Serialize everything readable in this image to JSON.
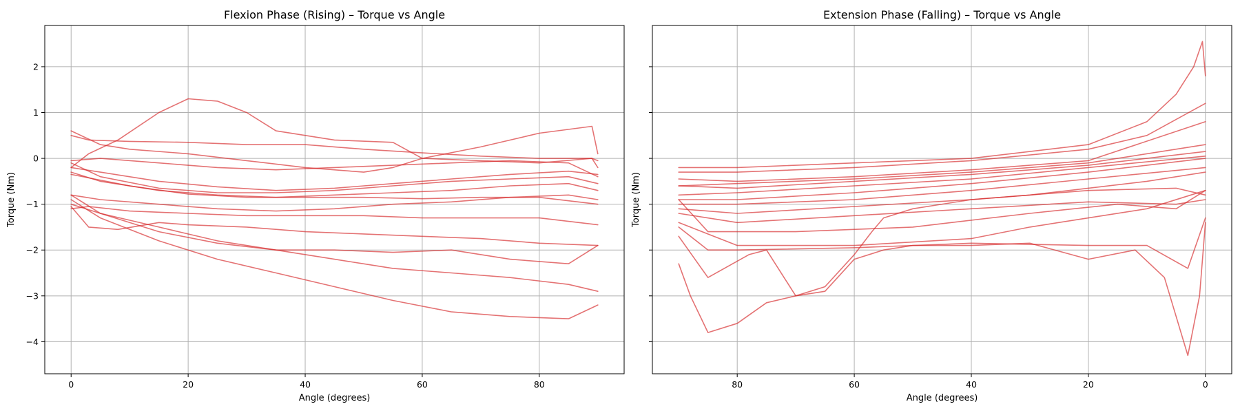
{
  "chart_data": [
    {
      "type": "line",
      "title": "Flexion Phase (Rising) – Torque vs Angle",
      "xlabel": "Angle (degrees)",
      "ylabel": "Torque (Nm)",
      "xlim": [
        -4.5,
        94.5
      ],
      "ylim": [
        -4.7,
        2.9
      ],
      "x_inverted": false,
      "xticks": [
        0,
        20,
        40,
        60,
        80
      ],
      "xtick_labels": [
        "0",
        "20",
        "40",
        "60",
        "80"
      ],
      "yticks": [
        -4,
        -3,
        -2,
        -1,
        0,
        1,
        2
      ],
      "ytick_labels": [
        "−4",
        "−3",
        "−2",
        "−1",
        "0",
        "1",
        "2"
      ],
      "grid": true,
      "line_color": "#d62728",
      "series": [
        {
          "x": [
            0,
            3,
            10,
            20,
            30,
            40,
            50,
            60,
            70,
            80,
            89,
            90
          ],
          "y": [
            0.5,
            0.4,
            0.37,
            0.35,
            0.3,
            0.3,
            0.2,
            0.12,
            0.05,
            0.0,
            0.0,
            -0.05
          ]
        },
        {
          "x": [
            0,
            3,
            8,
            15,
            20,
            25,
            30,
            35,
            45,
            55,
            60,
            70,
            80,
            89,
            90
          ],
          "y": [
            -0.2,
            0.1,
            0.4,
            1.0,
            1.3,
            1.25,
            1.0,
            0.6,
            0.4,
            0.35,
            0.0,
            -0.05,
            -0.1,
            0.0,
            -0.2
          ]
        },
        {
          "x": [
            0,
            5,
            10,
            20,
            30,
            40,
            50,
            55,
            60,
            70,
            80,
            89,
            90
          ],
          "y": [
            0.6,
            0.3,
            0.2,
            0.1,
            -0.05,
            -0.2,
            -0.3,
            -0.2,
            0.0,
            0.25,
            0.55,
            0.7,
            0.1
          ]
        },
        {
          "x": [
            0,
            5,
            15,
            25,
            35,
            45,
            55,
            65,
            75,
            85,
            90
          ],
          "y": [
            -0.05,
            0.0,
            -0.1,
            -0.2,
            -0.25,
            -0.2,
            -0.15,
            -0.1,
            -0.05,
            -0.1,
            -0.4
          ]
        },
        {
          "x": [
            0,
            5,
            15,
            25,
            35,
            45,
            55,
            65,
            75,
            85,
            90
          ],
          "y": [
            -0.2,
            -0.3,
            -0.5,
            -0.62,
            -0.7,
            -0.65,
            -0.55,
            -0.45,
            -0.35,
            -0.28,
            -0.35
          ]
        },
        {
          "x": [
            0,
            5,
            15,
            25,
            35,
            45,
            55,
            65,
            75,
            85,
            90
          ],
          "y": [
            -0.1,
            -0.4,
            -0.65,
            -0.75,
            -0.75,
            -0.7,
            -0.6,
            -0.5,
            -0.45,
            -0.4,
            -0.55
          ]
        },
        {
          "x": [
            0,
            5,
            15,
            25,
            35,
            45,
            55,
            65,
            75,
            85,
            90
          ],
          "y": [
            -0.3,
            -0.5,
            -0.7,
            -0.8,
            -0.85,
            -0.8,
            -0.75,
            -0.7,
            -0.6,
            -0.55,
            -0.7
          ]
        },
        {
          "x": [
            0,
            10,
            20,
            30,
            40,
            50,
            60,
            70,
            80,
            90
          ],
          "y": [
            -0.35,
            -0.6,
            -0.78,
            -0.85,
            -0.85,
            -0.85,
            -0.88,
            -0.85,
            -0.85,
            -1.0
          ]
        },
        {
          "x": [
            0,
            5,
            15,
            25,
            35,
            45,
            55,
            65,
            75,
            85,
            90
          ],
          "y": [
            -0.8,
            -0.9,
            -1.0,
            -1.1,
            -1.15,
            -1.1,
            -1.0,
            -0.95,
            -0.85,
            -0.8,
            -0.9
          ]
        },
        {
          "x": [
            0,
            3,
            10,
            20,
            30,
            40,
            50,
            60,
            70,
            80,
            90
          ],
          "y": [
            -1.1,
            -1.05,
            -1.15,
            -1.2,
            -1.25,
            -1.25,
            -1.25,
            -1.3,
            -1.3,
            -1.3,
            -1.45
          ]
        },
        {
          "x": [
            0,
            3,
            8,
            15,
            20,
            30,
            40,
            50,
            60,
            70,
            80,
            90
          ],
          "y": [
            -1.05,
            -1.5,
            -1.55,
            -1.4,
            -1.45,
            -1.5,
            -1.6,
            -1.65,
            -1.7,
            -1.75,
            -1.85,
            -1.9
          ]
        },
        {
          "x": [
            0,
            5,
            15,
            25,
            35,
            45,
            55,
            65,
            75,
            85,
            90
          ],
          "y": [
            -0.8,
            -1.2,
            -1.5,
            -1.8,
            -2.0,
            -2.0,
            -2.05,
            -2.0,
            -2.2,
            -2.3,
            -1.9
          ]
        },
        {
          "x": [
            0,
            5,
            15,
            25,
            35,
            45,
            55,
            65,
            75,
            85,
            90
          ],
          "y": [
            -1.0,
            -1.2,
            -1.6,
            -1.85,
            -2.0,
            -2.2,
            -2.4,
            -2.5,
            -2.6,
            -2.75,
            -2.9
          ]
        },
        {
          "x": [
            0,
            5,
            15,
            25,
            35,
            45,
            55,
            65,
            75,
            85,
            90
          ],
          "y": [
            -0.9,
            -1.3,
            -1.8,
            -2.2,
            -2.5,
            -2.8,
            -3.1,
            -3.35,
            -3.45,
            -3.5,
            -3.2
          ]
        }
      ]
    },
    {
      "type": "line",
      "title": "Extension Phase (Falling) – Torque vs Angle",
      "xlabel": "Angle (degrees)",
      "ylabel": "Torque (Nm)",
      "xlim": [
        94.5,
        -4.5
      ],
      "ylim": [
        -4.7,
        2.9
      ],
      "x_inverted": true,
      "xticks": [
        80,
        60,
        40,
        20,
        0
      ],
      "xtick_labels": [
        "80",
        "60",
        "40",
        "20",
        "0"
      ],
      "yticks": [
        -4,
        -3,
        -2,
        -1,
        0,
        1,
        2
      ],
      "ytick_labels": [
        "",
        "",
        "",
        "",
        "",
        "",
        ""
      ],
      "grid": true,
      "line_color": "#d62728",
      "series": [
        {
          "x": [
            90,
            80,
            60,
            40,
            20,
            10,
            5,
            2,
            0.5,
            0
          ],
          "y": [
            -0.2,
            -0.2,
            -0.1,
            0.0,
            0.3,
            0.8,
            1.4,
            2.0,
            2.55,
            1.8
          ]
        },
        {
          "x": [
            90,
            80,
            60,
            40,
            20,
            10,
            0
          ],
          "y": [
            -0.3,
            -0.3,
            -0.2,
            -0.05,
            0.2,
            0.5,
            1.2
          ]
        },
        {
          "x": [
            90,
            80,
            60,
            40,
            20,
            0
          ],
          "y": [
            -0.45,
            -0.5,
            -0.4,
            -0.25,
            -0.05,
            0.8
          ]
        },
        {
          "x": [
            90,
            80,
            60,
            40,
            20,
            0
          ],
          "y": [
            -0.6,
            -0.55,
            -0.45,
            -0.3,
            -0.1,
            0.3
          ]
        },
        {
          "x": [
            90,
            80,
            60,
            40,
            20,
            0
          ],
          "y": [
            -0.6,
            -0.65,
            -0.5,
            -0.35,
            -0.15,
            0.15
          ]
        },
        {
          "x": [
            90,
            80,
            60,
            40,
            20,
            0
          ],
          "y": [
            -0.8,
            -0.75,
            -0.6,
            -0.45,
            -0.2,
            0.05
          ]
        },
        {
          "x": [
            90,
            80,
            60,
            40,
            20,
            0
          ],
          "y": [
            -0.9,
            -0.9,
            -0.75,
            -0.55,
            -0.3,
            0.0
          ]
        },
        {
          "x": [
            90,
            80,
            60,
            40,
            20,
            0
          ],
          "y": [
            -1.0,
            -1.0,
            -0.9,
            -0.7,
            -0.45,
            -0.2
          ]
        },
        {
          "x": [
            90,
            80,
            60,
            40,
            20,
            5,
            0
          ],
          "y": [
            -1.1,
            -1.2,
            -1.05,
            -0.9,
            -0.7,
            -0.65,
            -0.8
          ]
        },
        {
          "x": [
            90,
            80,
            60,
            40,
            20,
            5,
            0
          ],
          "y": [
            -1.2,
            -1.4,
            -1.25,
            -1.1,
            -0.95,
            -1.0,
            -0.9
          ]
        },
        {
          "x": [
            90,
            85,
            70,
            50,
            30,
            15,
            5,
            0
          ],
          "y": [
            -0.9,
            -1.6,
            -1.6,
            -1.5,
            -1.2,
            -1.0,
            -1.1,
            -0.7
          ]
        },
        {
          "x": [
            90,
            80,
            60,
            40,
            30,
            20,
            10,
            0
          ],
          "y": [
            -1.4,
            -1.9,
            -1.9,
            -1.75,
            -1.5,
            -1.3,
            -1.1,
            -0.7
          ]
        },
        {
          "x": [
            90,
            85,
            80,
            60,
            40,
            20,
            10,
            3,
            0
          ],
          "y": [
            -1.5,
            -2.0,
            -2.0,
            -1.95,
            -1.85,
            -1.9,
            -1.9,
            -2.4,
            -1.3
          ]
        },
        {
          "x": [
            90,
            85,
            78,
            75,
            70,
            65,
            60,
            55,
            50,
            40,
            30,
            20,
            12,
            7,
            3,
            1,
            0
          ],
          "y": [
            -1.7,
            -2.6,
            -2.1,
            -2.0,
            -3.0,
            -2.9,
            -2.2,
            -2.0,
            -1.9,
            -1.9,
            -1.85,
            -2.2,
            -2.0,
            -2.6,
            -4.3,
            -3.0,
            -1.4
          ]
        },
        {
          "x": [
            90,
            88,
            85,
            80,
            75,
            70,
            65,
            60,
            57,
            55,
            50,
            40,
            30,
            20,
            10,
            0
          ],
          "y": [
            -2.3,
            -3.0,
            -3.8,
            -3.6,
            -3.15,
            -3.0,
            -2.8,
            -2.1,
            -1.6,
            -1.3,
            -1.1,
            -0.9,
            -0.8,
            -0.65,
            -0.5,
            -0.3
          ]
        }
      ]
    }
  ]
}
